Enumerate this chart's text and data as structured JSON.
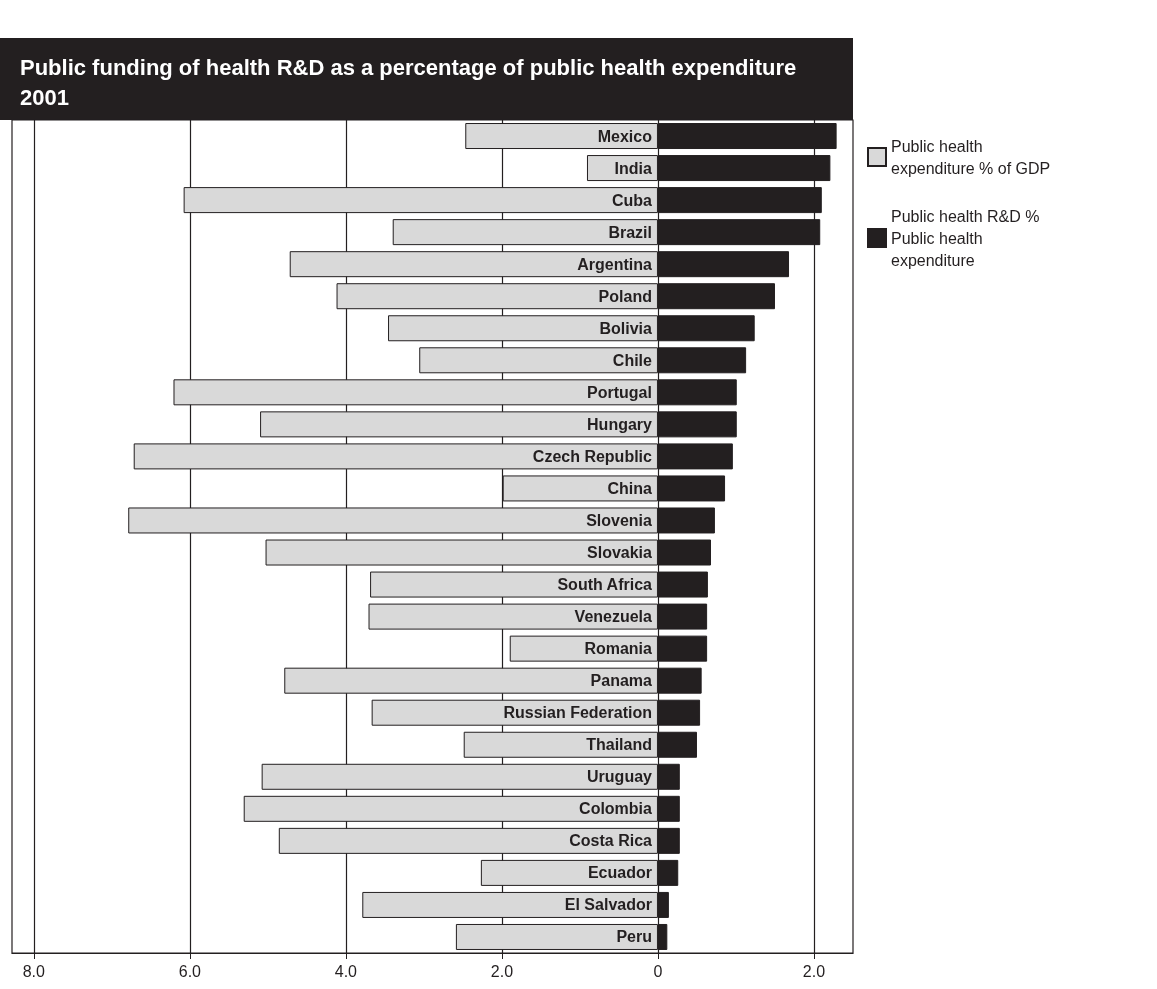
{
  "chart_data": {
    "type": "bar",
    "orientation": "horizontal",
    "title": "Public funding of health R&D as a percentage of public health expenditure 2001",
    "categories": [
      "Mexico",
      "India",
      "Cuba",
      "Brazil",
      "Argentina",
      "Poland",
      "Bolivia",
      "Chile",
      "Portugal",
      "Hungary",
      "Czech Republic",
      "China",
      "Slovenia",
      "Slovakia",
      "South Africa",
      "Venezuela",
      "Romania",
      "Panama",
      "Russian Federation",
      "Thailand",
      "Uruguay",
      "Colombia",
      "Costa Rica",
      "Ecuador",
      "El Salvador",
      "Peru"
    ],
    "series": [
      {
        "name": "Public health expenditure % of GDP",
        "color": "#d9d9d9",
        "values": [
          -2.47,
          -0.91,
          -6.08,
          -3.4,
          -4.72,
          -4.12,
          -3.46,
          -3.06,
          -6.21,
          -5.1,
          -6.72,
          -1.99,
          -6.79,
          -5.03,
          -3.69,
          -3.71,
          -1.9,
          -4.79,
          -3.67,
          -2.49,
          -5.08,
          -5.31,
          -4.86,
          -2.27,
          -3.79,
          -2.59
        ]
      },
      {
        "name": "Public health R&D % Public health expenditure",
        "color": "#231f20",
        "values": [
          2.29,
          2.21,
          2.1,
          2.08,
          1.68,
          1.5,
          1.24,
          1.13,
          1.01,
          1.01,
          0.96,
          0.86,
          0.73,
          0.68,
          0.64,
          0.63,
          0.63,
          0.56,
          0.54,
          0.5,
          0.28,
          0.28,
          0.28,
          0.26,
          0.14,
          0.12
        ]
      }
    ],
    "xlim": [
      -8.28,
      2.5
    ],
    "xticks": [
      {
        "value": -8,
        "label": "8.0"
      },
      {
        "value": -6,
        "label": "6.0"
      },
      {
        "value": -4,
        "label": "4.0"
      },
      {
        "value": -2,
        "label": "2.0"
      },
      0,
      {
        "value": 2,
        "label": "2.0"
      }
    ],
    "grid": "x",
    "legend": "right",
    "stacked": true
  }
}
